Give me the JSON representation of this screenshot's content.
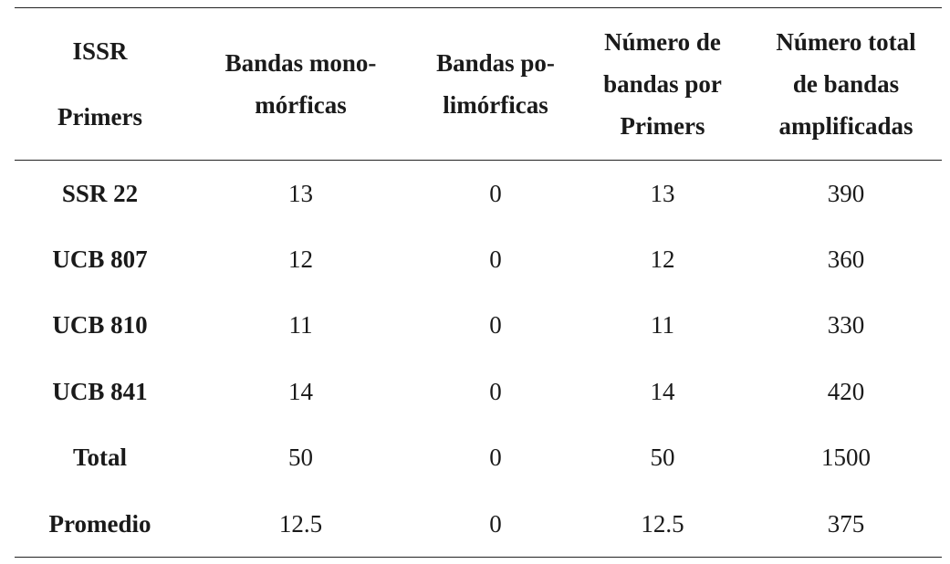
{
  "table": {
    "headers": [
      {
        "lines": [
          "ISSR",
          "Primers"
        ]
      },
      {
        "lines": [
          "Bandas mono-",
          "mórficas"
        ]
      },
      {
        "lines": [
          "Bandas po-",
          "limórficas"
        ]
      },
      {
        "lines": [
          "Número de",
          "bandas por",
          "Primers"
        ]
      },
      {
        "lines": [
          "Número total",
          "de bandas",
          "amplificadas"
        ]
      }
    ],
    "rows": [
      {
        "label": "SSR 22",
        "monomorficas": "13",
        "polimorficas": "0",
        "por_primer": "13",
        "total_amplificadas": "390"
      },
      {
        "label": "UCB 807",
        "monomorficas": "12",
        "polimorficas": "0",
        "por_primer": "12",
        "total_amplificadas": "360"
      },
      {
        "label": "UCB 810",
        "monomorficas": "11",
        "polimorficas": "0",
        "por_primer": "11",
        "total_amplificadas": "330"
      },
      {
        "label": "UCB 841",
        "monomorficas": "14",
        "polimorficas": "0",
        "por_primer": "14",
        "total_amplificadas": "420"
      },
      {
        "label": "Total",
        "monomorficas": "50",
        "polimorficas": "0",
        "por_primer": "50",
        "total_amplificadas": "1500"
      },
      {
        "label": "Promedio",
        "monomorficas": "12.5",
        "polimorficas": "0",
        "por_primer": "12.5",
        "total_amplificadas": "375"
      }
    ]
  }
}
